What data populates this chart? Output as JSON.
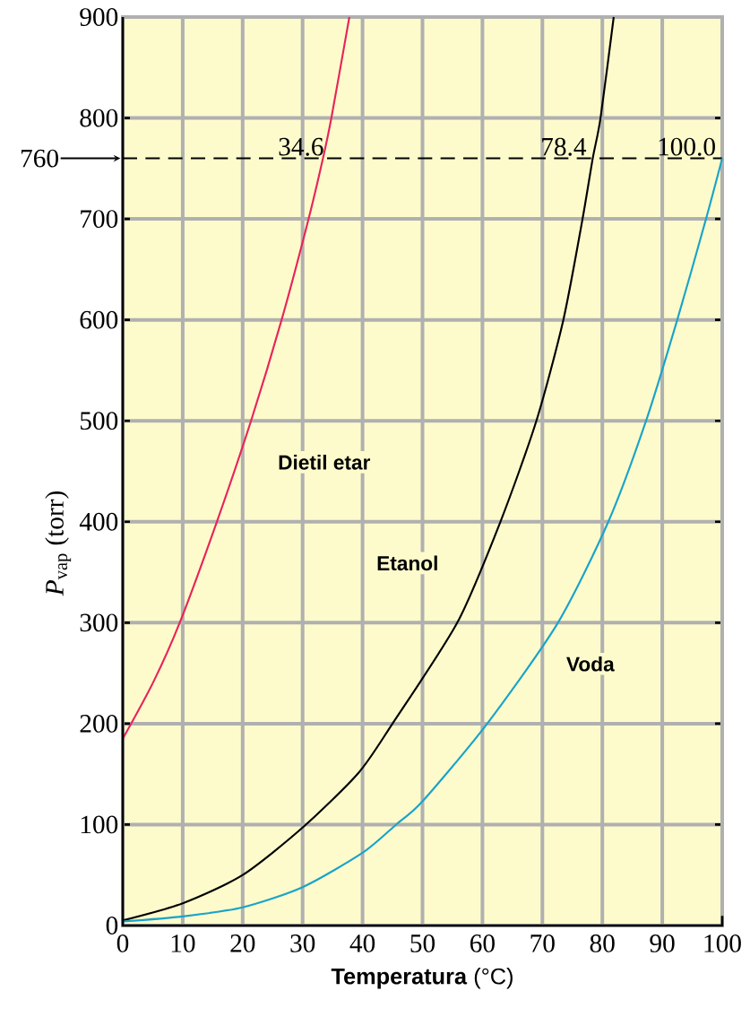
{
  "chart_data": {
    "type": "line",
    "xlabel": "**Temperatura** (°C)",
    "ylabel": "*P*$_{vap}$ (torr)",
    "xlim": [
      0,
      100
    ],
    "ylim": [
      0,
      900
    ],
    "xticks": [
      0,
      10,
      20,
      30,
      40,
      50,
      60,
      70,
      80,
      90,
      100
    ],
    "yticks": [
      0,
      100,
      200,
      300,
      400,
      500,
      600,
      700,
      800,
      900
    ],
    "grid": true,
    "series": [
      {
        "name": "Dietil etar",
        "color": "#e8245a",
        "x": [
          0,
          5,
          9.5,
          15.7,
          21.4,
          26.5,
          31,
          33.4,
          34.8,
          37.8
        ],
        "values": [
          185,
          240,
          300,
          400,
          500,
          600,
          700,
          760,
          800,
          900
        ]
      },
      {
        "name": "Etanol",
        "color": "#000000",
        "x": [
          0,
          10,
          20,
          30,
          39.3,
          45,
          55.8,
          63,
          69,
          73.5,
          76.7,
          78.4,
          79.7,
          81.9
        ],
        "values": [
          5,
          22,
          50,
          97,
          151,
          200,
          300,
          400,
          500,
          600,
          700,
          760,
          800,
          900
        ]
      },
      {
        "name": "Voda",
        "color": "#1aa3c8",
        "x": [
          0,
          10,
          20,
          30,
          40,
          45.6,
          50,
          60.8,
          72.6,
          81,
          87.3,
          92.5,
          97.3,
          100
        ],
        "values": [
          4,
          9,
          18,
          38,
          72,
          100,
          123,
          200,
          300,
          400,
          500,
          600,
          700,
          760
        ]
      }
    ],
    "ref_lines": [
      {
        "axis": "y",
        "value": 760,
        "label": "760",
        "line_style": "dashed",
        "color": "#000000"
      }
    ],
    "annotations": [
      {
        "text": "34.6",
        "x": 34.6,
        "y": 760
      },
      {
        "text": "78.4",
        "x": 78.4,
        "y": 760
      },
      {
        "text": "100.0",
        "x": 100,
        "y": 760
      }
    ]
  }
}
